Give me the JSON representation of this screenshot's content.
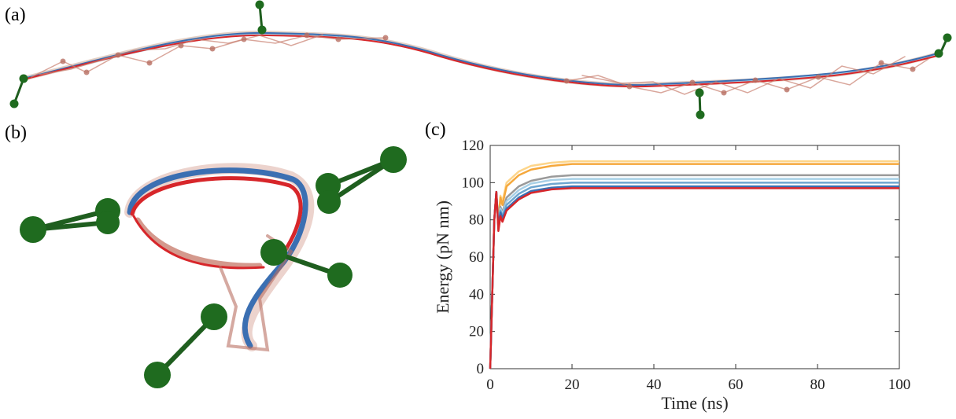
{
  "panels": {
    "a": "(a)",
    "b": "(b)",
    "c": "(c)"
  },
  "chart_data": {
    "type": "line",
    "x_label": "Time (ns)",
    "y_label": "Energy (pN nm)",
    "x": [
      0,
      0.5,
      1,
      1.5,
      2,
      2.5,
      3,
      4,
      5,
      7,
      10,
      15,
      20,
      100
    ],
    "series": [
      {
        "color": "#fdd58a",
        "values": [
          0,
          40,
          80,
          95,
          79,
          93,
          90,
          100,
          102,
          106,
          109,
          110.7,
          111.5,
          111.5
        ]
      },
      {
        "color": "#f5a83c",
        "values": [
          0,
          40,
          80,
          95,
          78,
          92,
          88,
          98,
          100,
          104,
          107,
          109,
          110,
          110
        ]
      },
      {
        "color": "#9a9a9a",
        "values": [
          0,
          40,
          80,
          95,
          77,
          87,
          84,
          92,
          94,
          98,
          101,
          103.2,
          104,
          104
        ]
      },
      {
        "color": "#a8d0e6",
        "values": [
          0,
          40,
          80,
          95,
          77,
          86,
          83,
          90,
          92,
          96,
          99.5,
          101.4,
          102,
          102
        ]
      },
      {
        "color": "#6ea6d0",
        "values": [
          0,
          40,
          80,
          95,
          76,
          85,
          82,
          88,
          90,
          94,
          97.5,
          99.3,
          100,
          100
        ]
      },
      {
        "color": "#3b6fb2",
        "values": [
          0,
          40,
          80,
          95,
          76,
          84,
          81,
          86,
          88,
          92,
          95.5,
          97.3,
          98,
          98
        ]
      },
      {
        "color": "#d7262a",
        "values": [
          0,
          40,
          80,
          95,
          74,
          82,
          79,
          85,
          87,
          91,
          94.5,
          96.4,
          97,
          97
        ]
      }
    ],
    "xlim": [
      0,
      100
    ],
    "ylim": [
      0,
      120
    ],
    "xticks": [
      0,
      20,
      40,
      60,
      80,
      100
    ],
    "yticks": [
      0,
      20,
      40,
      60,
      80,
      100,
      120
    ]
  }
}
